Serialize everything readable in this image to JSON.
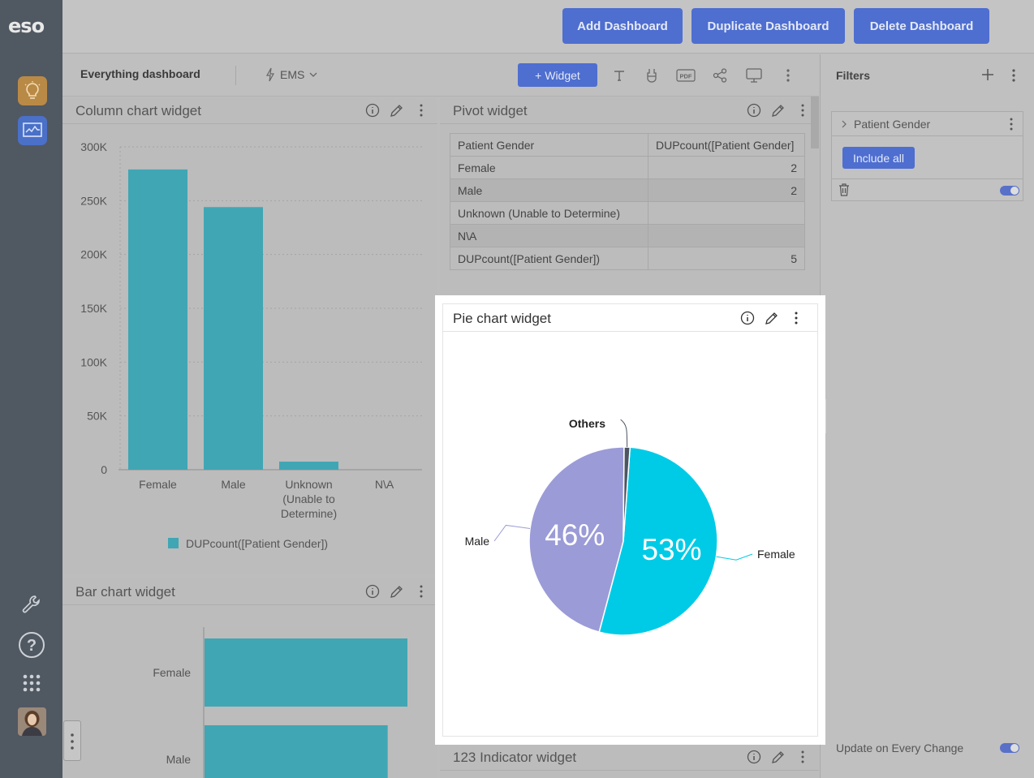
{
  "brand": "eso",
  "topbar": {
    "add_dashboard": "Add Dashboard",
    "duplicate_dashboard": "Duplicate Dashboard",
    "delete_dashboard": "Delete Dashboard"
  },
  "toolbar": {
    "dashboard_title": "Everything dashboard",
    "datasource": "EMS",
    "widget_button": "+ Widget",
    "pdf_label": "PDF"
  },
  "filters": {
    "title": "Filters",
    "filter_name": "Patient Gender",
    "include_all": "Include all",
    "update_on_change": "Update on Every Change"
  },
  "column_widget": {
    "title": "Column chart widget",
    "chart_data": {
      "type": "bar",
      "categories": [
        "Female",
        "Male",
        "Unknown\n(Unable to\nDetermine)",
        "N\\A"
      ],
      "category_lines": [
        [
          "Female"
        ],
        [
          "Male"
        ],
        [
          "Unknown",
          "(Unable to",
          "Determine)"
        ],
        [
          "N\\A"
        ]
      ],
      "series": [
        {
          "name": "DUPcount([Patient Gender])",
          "values": [
            279000,
            244000,
            7500,
            0
          ]
        }
      ],
      "ylim": [
        0,
        300000
      ],
      "y_ticks": [
        0,
        50000,
        100000,
        150000,
        200000,
        250000,
        300000
      ],
      "y_tick_labels": [
        "0",
        "50K",
        "100K",
        "150K",
        "200K",
        "250K",
        "300K"
      ],
      "legend": "bottom",
      "grid": true,
      "color": "#40a6b4"
    }
  },
  "pivot_widget": {
    "title": "Pivot widget",
    "header": [
      "Patient Gender",
      "DUPcount([Patient Gender]"
    ],
    "rows": [
      [
        "Female",
        "2"
      ],
      [
        "Male",
        "2"
      ],
      [
        "Unknown (Unable to Determine)",
        ""
      ],
      [
        "N\\A",
        ""
      ],
      [
        "DUPcount([Patient Gender])",
        "5"
      ]
    ]
  },
  "pie_widget": {
    "title": "Pie chart widget",
    "chart_data": {
      "type": "pie",
      "slices": [
        {
          "label": "Female",
          "value": 53,
          "pct_label": "53%",
          "color": "#00cbe6"
        },
        {
          "label": "Male",
          "value": 46,
          "pct_label": "46%",
          "color": "#9b9bd7"
        },
        {
          "label": "Others",
          "value": 1,
          "pct_label": "",
          "color": "#4b5563"
        }
      ]
    }
  },
  "bar_widget": {
    "title": "Bar chart widget",
    "chart_data": {
      "type": "bar",
      "orientation": "horizontal",
      "categories": [
        "Female",
        "Male"
      ],
      "series": [
        {
          "name": "DUPcount([Patient Gender])",
          "values": [
            279000,
            244000
          ]
        }
      ],
      "xlim": [
        0,
        300000
      ],
      "color": "#40a6b4"
    }
  },
  "indicator_widget": {
    "title": "123 Indicator widget"
  }
}
